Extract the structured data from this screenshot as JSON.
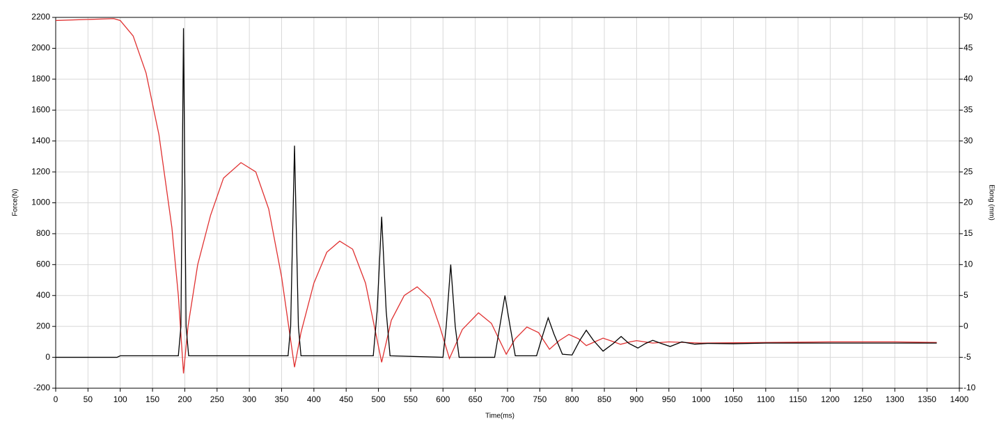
{
  "chart_data": {
    "type": "line",
    "x_label": "Time(ms)",
    "y_label": "Force(N)",
    "y2_label": "Elong (mm)",
    "xlim": [
      0,
      1400
    ],
    "xticks": [
      0,
      50,
      100,
      150,
      200,
      250,
      300,
      350,
      400,
      450,
      500,
      550,
      600,
      650,
      700,
      750,
      800,
      850,
      900,
      950,
      1000,
      1050,
      1100,
      1150,
      1200,
      1250,
      1300,
      1350,
      1400
    ],
    "ylim": [
      -200,
      2200
    ],
    "yticks": [
      -200,
      0,
      200,
      400,
      600,
      800,
      1000,
      1200,
      1400,
      1600,
      1800,
      2000,
      2200
    ],
    "y2lim": [
      -10,
      50
    ],
    "y2ticks": [
      -10,
      -5,
      0,
      5,
      10,
      15,
      20,
      25,
      30,
      35,
      40,
      45,
      50
    ],
    "grid": true,
    "series": [
      {
        "name": "Force",
        "color": "#000000",
        "x": [
          0,
          95,
          100,
          190,
          194,
          198,
          202,
          206,
          360,
          364,
          370,
          376,
          380,
          492,
          498,
          505,
          512,
          518,
          600,
          605,
          612,
          619,
          625,
          680,
          688,
          696,
          704,
          712,
          745,
          755,
          763,
          772,
          785,
          800,
          812,
          822,
          833,
          848,
          864,
          876,
          888,
          902,
          914,
          925,
          938,
          952,
          970,
          990,
          1010,
          1050,
          1100,
          1200,
          1300,
          1365
        ],
        "values": [
          0,
          0,
          10,
          10,
          200,
          2130,
          200,
          10,
          10,
          200,
          1370,
          200,
          10,
          10,
          300,
          910,
          300,
          10,
          0,
          200,
          600,
          200,
          0,
          0,
          200,
          400,
          200,
          10,
          10,
          150,
          255,
          150,
          20,
          15,
          110,
          175,
          110,
          40,
          90,
          135,
          90,
          60,
          90,
          110,
          90,
          70,
          100,
          85,
          90,
          88,
          92,
          92,
          92,
          92
        ]
      },
      {
        "name": "Elong",
        "color": "#e03030",
        "axis": "y2",
        "x": [
          0,
          90,
          100,
          120,
          140,
          160,
          180,
          190,
          198,
          205,
          220,
          240,
          260,
          287,
          310,
          330,
          350,
          370,
          380,
          400,
          420,
          440,
          460,
          480,
          505,
          520,
          540,
          560,
          580,
          595,
          610,
          630,
          655,
          675,
          698,
          712,
          730,
          748,
          765,
          780,
          795,
          810,
          822,
          835,
          848,
          862,
          875,
          890,
          900,
          925,
          950,
          1000,
          1100,
          1200,
          1300,
          1365
        ],
        "values": [
          49.5,
          49.8,
          49.5,
          47,
          41,
          31,
          16,
          5,
          -7.6,
          0,
          10,
          18,
          24,
          26.5,
          25,
          19,
          8,
          -6.6,
          -1,
          7,
          12,
          13.8,
          12.5,
          7,
          -5.8,
          1,
          5,
          6.4,
          4.5,
          0,
          -5.2,
          -0.5,
          2.2,
          0.5,
          -4.5,
          -2,
          -0.1,
          -1,
          -3.7,
          -2.3,
          -1.3,
          -2,
          -3.1,
          -2.5,
          -1.9,
          -2.4,
          -2.9,
          -2.5,
          -2.3,
          -2.7,
          -2.5,
          -2.7,
          -2.6,
          -2.5,
          -2.5,
          -2.6
        ]
      }
    ]
  }
}
